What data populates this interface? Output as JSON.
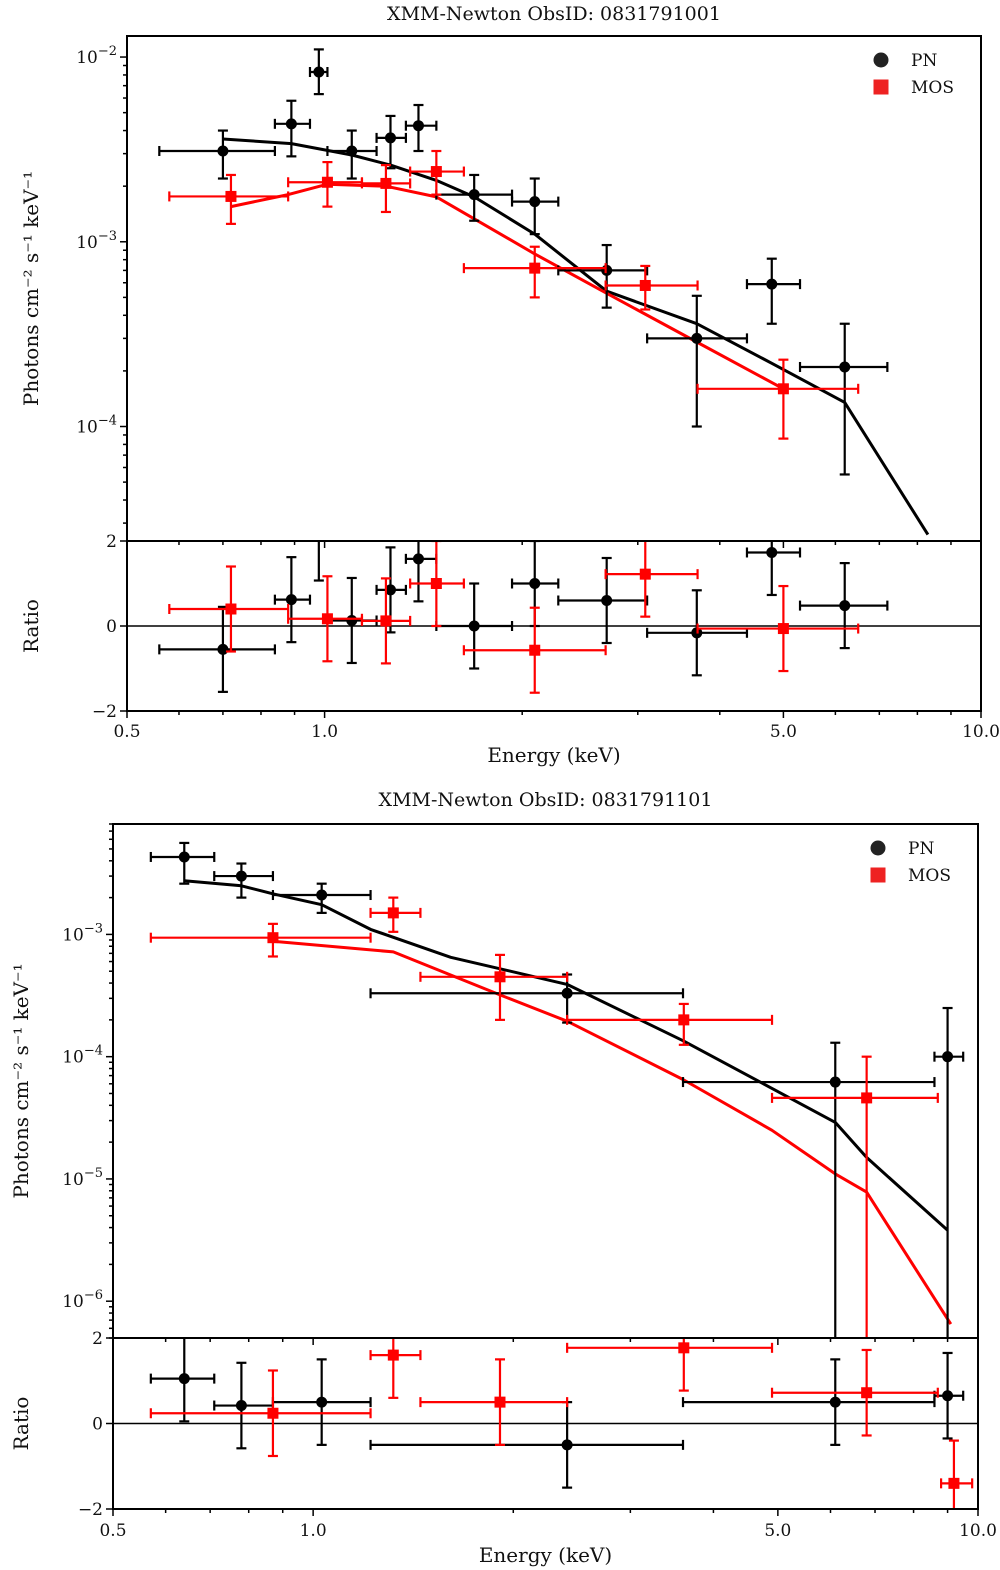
{
  "figure": {
    "legend": [
      {
        "label": "PN",
        "color": "#000000",
        "marker": "circle"
      },
      {
        "label": "MOS",
        "color": "#ff0000",
        "marker": "square"
      }
    ]
  },
  "chart_data": [
    {
      "type": "scatter",
      "title": "XMM-Newton ObsID: 0831791001",
      "xlabel": "Energy (keV)",
      "ylabel": "Photons cm⁻² s⁻¹ keV⁻¹",
      "xscale": "log",
      "yscale": "log",
      "xlim": [
        0.5,
        10.0
      ],
      "ylim": [
        2.4e-05,
        0.013
      ],
      "x_ticks": [
        "0.5",
        "1.0",
        "5.0",
        "10.0"
      ],
      "y_ticks": [
        {
          "value": 0.01,
          "label": "10^-2"
        },
        {
          "value": 0.001,
          "label": "10^-3"
        },
        {
          "value": 0.0001,
          "label": "10^-4"
        }
      ],
      "legend_position": "top-right",
      "series": [
        {
          "name": "PN",
          "color": "#000000",
          "marker": "circle",
          "points": [
            {
              "x": 0.7,
              "xlo": 0.56,
              "xhi": 0.84,
              "y": 0.0031,
              "ylo": 0.0022,
              "yhi": 0.004
            },
            {
              "x": 0.89,
              "xlo": 0.84,
              "xhi": 0.95,
              "y": 0.00435,
              "ylo": 0.0029,
              "yhi": 0.0058
            },
            {
              "x": 0.98,
              "xlo": 0.95,
              "xhi": 1.01,
              "y": 0.0083,
              "ylo": 0.0063,
              "yhi": 0.011
            },
            {
              "x": 1.1,
              "xlo": 1.01,
              "xhi": 1.2,
              "y": 0.0031,
              "ylo": 0.0022,
              "yhi": 0.004
            },
            {
              "x": 1.26,
              "xlo": 1.2,
              "xhi": 1.33,
              "y": 0.00365,
              "ylo": 0.0025,
              "yhi": 0.0048
            },
            {
              "x": 1.39,
              "xlo": 1.33,
              "xhi": 1.48,
              "y": 0.00425,
              "ylo": 0.0031,
              "yhi": 0.0055
            },
            {
              "x": 1.69,
              "xlo": 1.48,
              "xhi": 1.93,
              "y": 0.0018,
              "ylo": 0.0013,
              "yhi": 0.0023
            },
            {
              "x": 2.09,
              "xlo": 1.93,
              "xhi": 2.27,
              "y": 0.00165,
              "ylo": 0.0011,
              "yhi": 0.0022
            },
            {
              "x": 2.69,
              "xlo": 2.27,
              "xhi": 3.1,
              "y": 0.0007,
              "ylo": 0.00044,
              "yhi": 0.00096
            },
            {
              "x": 3.69,
              "xlo": 3.1,
              "xhi": 4.4,
              "y": 0.0003,
              "ylo": 0.0001,
              "yhi": 0.00051
            },
            {
              "x": 4.8,
              "xlo": 4.4,
              "xhi": 5.3,
              "y": 0.00059,
              "ylo": 0.00036,
              "yhi": 0.00081
            },
            {
              "x": 6.2,
              "xlo": 5.3,
              "xhi": 7.2,
              "y": 0.00021,
              "ylo": 5.5e-05,
              "yhi": 0.00036
            }
          ],
          "model": [
            [
              0.7,
              0.0036
            ],
            [
              0.89,
              0.0034
            ],
            [
              1.1,
              0.00295
            ],
            [
              1.26,
              0.0026
            ],
            [
              1.48,
              0.00215
            ],
            [
              1.69,
              0.00175
            ],
            [
              2.09,
              0.0011
            ],
            [
              2.69,
              0.00054
            ],
            [
              3.69,
              0.00036
            ],
            [
              4.8,
              0.00022
            ],
            [
              6.2,
              0.000135
            ],
            [
              8.3,
              2.6e-05
            ]
          ]
        },
        {
          "name": "MOS",
          "color": "#ff0000",
          "marker": "square",
          "points": [
            {
              "x": 0.72,
              "xlo": 0.58,
              "xhi": 0.88,
              "y": 0.00176,
              "ylo": 0.00125,
              "yhi": 0.0023
            },
            {
              "x": 1.01,
              "xlo": 0.88,
              "xhi": 1.14,
              "y": 0.0021,
              "ylo": 0.00155,
              "yhi": 0.0027
            },
            {
              "x": 1.24,
              "xlo": 1.14,
              "xhi": 1.35,
              "y": 0.00207,
              "ylo": 0.00145,
              "yhi": 0.0026
            },
            {
              "x": 1.48,
              "xlo": 1.35,
              "xhi": 1.63,
              "y": 0.0024,
              "ylo": 0.0018,
              "yhi": 0.0031
            },
            {
              "x": 2.09,
              "xlo": 1.63,
              "xhi": 2.68,
              "y": 0.00072,
              "ylo": 0.0005,
              "yhi": 0.00094
            },
            {
              "x": 3.08,
              "xlo": 2.68,
              "xhi": 3.7,
              "y": 0.00058,
              "ylo": 0.00043,
              "yhi": 0.00074
            },
            {
              "x": 5.0,
              "xlo": 3.7,
              "xhi": 6.5,
              "y": 0.00016,
              "ylo": 8.6e-05,
              "yhi": 0.00023
            }
          ],
          "model": [
            [
              0.72,
              0.00155
            ],
            [
              0.88,
              0.0018
            ],
            [
              1.01,
              0.00205
            ],
            [
              1.24,
              0.002
            ],
            [
              1.48,
              0.00175
            ],
            [
              2.09,
              0.00086
            ],
            [
              2.68,
              0.00053
            ],
            [
              3.7,
              0.000285
            ],
            [
              5.0,
              0.00016
            ]
          ]
        }
      ],
      "ratio_panel": {
        "ylabel": "Ratio",
        "ylim": [
          -2,
          2
        ],
        "y_ticks": [
          "2",
          "0",
          "−2"
        ],
        "reference_line": 0,
        "series": [
          {
            "name": "PN",
            "color": "#000000",
            "points": [
              {
                "x": 0.7,
                "xlo": 0.56,
                "xhi": 0.84,
                "y": -0.55,
                "ylo": -1.55,
                "yhi": 0.45
              },
              {
                "x": 0.89,
                "xlo": 0.84,
                "xhi": 0.95,
                "y": 0.62,
                "ylo": -0.38,
                "yhi": 1.62
              },
              {
                "x": 0.98,
                "xlo": 0.95,
                "xhi": 1.01,
                "y": 2.1,
                "ylo": 1.07,
                "yhi": 3.1
              },
              {
                "x": 1.1,
                "xlo": 1.01,
                "xhi": 1.2,
                "y": 0.13,
                "ylo": -0.87,
                "yhi": 1.13
              },
              {
                "x": 1.26,
                "xlo": 1.2,
                "xhi": 1.33,
                "y": 0.85,
                "ylo": -0.15,
                "yhi": 1.85
              },
              {
                "x": 1.39,
                "xlo": 1.33,
                "xhi": 1.48,
                "y": 1.58,
                "ylo": 0.58,
                "yhi": 2.58
              },
              {
                "x": 1.69,
                "xlo": 1.48,
                "xhi": 1.93,
                "y": 0.0,
                "ylo": -1.0,
                "yhi": 1.0
              },
              {
                "x": 2.09,
                "xlo": 1.93,
                "xhi": 2.27,
                "y": 1.0,
                "ylo": 0.0,
                "yhi": 2.0
              },
              {
                "x": 2.69,
                "xlo": 2.27,
                "xhi": 3.1,
                "y": 0.6,
                "ylo": -0.4,
                "yhi": 1.6
              },
              {
                "x": 3.69,
                "xlo": 3.1,
                "xhi": 4.4,
                "y": -0.16,
                "ylo": -1.16,
                "yhi": 0.84
              },
              {
                "x": 4.8,
                "xlo": 4.4,
                "xhi": 5.3,
                "y": 1.73,
                "ylo": 0.73,
                "yhi": 2.73
              },
              {
                "x": 6.2,
                "xlo": 5.3,
                "xhi": 7.2,
                "y": 0.48,
                "ylo": -0.52,
                "yhi": 1.48
              }
            ]
          },
          {
            "name": "MOS",
            "color": "#ff0000",
            "points": [
              {
                "x": 0.72,
                "xlo": 0.58,
                "xhi": 0.88,
                "y": 0.4,
                "ylo": -0.6,
                "yhi": 1.4
              },
              {
                "x": 1.01,
                "xlo": 0.88,
                "xhi": 1.14,
                "y": 0.17,
                "ylo": -0.83,
                "yhi": 1.17
              },
              {
                "x": 1.24,
                "xlo": 1.14,
                "xhi": 1.35,
                "y": 0.12,
                "ylo": -0.88,
                "yhi": 1.12
              },
              {
                "x": 1.48,
                "xlo": 1.35,
                "xhi": 1.63,
                "y": 1.0,
                "ylo": 0.0,
                "yhi": 2.0
              },
              {
                "x": 2.09,
                "xlo": 1.63,
                "xhi": 2.68,
                "y": -0.57,
                "ylo": -1.57,
                "yhi": 0.43
              },
              {
                "x": 3.08,
                "xlo": 2.68,
                "xhi": 3.7,
                "y": 1.22,
                "ylo": 0.22,
                "yhi": 2.22
              },
              {
                "x": 5.0,
                "xlo": 3.7,
                "xhi": 6.5,
                "y": -0.06,
                "ylo": -1.06,
                "yhi": 0.94
              }
            ]
          }
        ]
      }
    },
    {
      "type": "scatter",
      "title": "XMM-Newton ObsID: 0831791101",
      "xlabel": "Energy (keV)",
      "ylabel": "Photons cm⁻² s⁻¹ keV⁻¹",
      "xscale": "log",
      "yscale": "log",
      "xlim": [
        0.5,
        10.0
      ],
      "ylim": [
        5e-07,
        0.008
      ],
      "x_ticks": [
        "0.5",
        "1.0",
        "5.0",
        "10.0"
      ],
      "y_ticks": [
        {
          "value": 0.001,
          "label": "10^-3"
        },
        {
          "value": 0.0001,
          "label": "10^-4"
        },
        {
          "value": 1e-05,
          "label": "10^-5"
        },
        {
          "value": 1e-06,
          "label": "10^-6"
        }
      ],
      "legend_position": "top-right",
      "series": [
        {
          "name": "PN",
          "color": "#000000",
          "marker": "circle",
          "points": [
            {
              "x": 0.64,
              "xlo": 0.57,
              "xhi": 0.71,
              "y": 0.0043,
              "ylo": 0.0026,
              "yhi": 0.0056
            },
            {
              "x": 0.78,
              "xlo": 0.71,
              "xhi": 0.87,
              "y": 0.003,
              "ylo": 0.002,
              "yhi": 0.0038
            },
            {
              "x": 1.03,
              "xlo": 0.87,
              "xhi": 1.22,
              "y": 0.0021,
              "ylo": 0.0015,
              "yhi": 0.0026
            },
            {
              "x": 2.41,
              "xlo": 1.22,
              "xhi": 3.6,
              "y": 0.00033,
              "ylo": 0.00019,
              "yhi": 0.00047
            },
            {
              "x": 6.1,
              "xlo": 3.6,
              "xhi": 8.6,
              "y": 6.2e-05,
              "ylo": 1e-07,
              "yhi": 0.00013
            },
            {
              "x": 9.0,
              "xlo": 8.6,
              "xhi": 9.5,
              "y": 0.0001,
              "ylo": 1e-07,
              "yhi": 0.00025
            }
          ],
          "model": [
            [
              0.64,
              0.00275
            ],
            [
              0.78,
              0.0025
            ],
            [
              0.87,
              0.00215
            ],
            [
              1.03,
              0.00175
            ],
            [
              1.22,
              0.0011
            ],
            [
              1.61,
              0.00065
            ],
            [
              2.41,
              0.00039
            ],
            [
              3.6,
              0.000135
            ],
            [
              4.9,
              5.5e-05
            ],
            [
              6.1,
              2.9e-05
            ],
            [
              6.8,
              1.5e-05
            ],
            [
              9.0,
              3.8e-06
            ]
          ]
        },
        {
          "name": "MOS",
          "color": "#ff0000",
          "marker": "square",
          "points": [
            {
              "x": 0.87,
              "xlo": 0.57,
              "xhi": 1.22,
              "y": 0.00094,
              "ylo": 0.00066,
              "yhi": 0.00122
            },
            {
              "x": 1.32,
              "xlo": 1.22,
              "xhi": 1.45,
              "y": 0.0015,
              "ylo": 0.00105,
              "yhi": 0.002
            },
            {
              "x": 1.91,
              "xlo": 1.45,
              "xhi": 2.41,
              "y": 0.00045,
              "ylo": 0.0002,
              "yhi": 0.00068
            },
            {
              "x": 3.61,
              "xlo": 2.41,
              "xhi": 4.9,
              "y": 0.0002,
              "ylo": 0.000125,
              "yhi": 0.00027
            },
            {
              "x": 6.8,
              "xlo": 4.9,
              "xhi": 8.7,
              "y": 4.6e-05,
              "ylo": 1e-07,
              "yhi": 0.0001
            }
          ],
          "model": [
            [
              0.87,
              0.00088
            ],
            [
              1.32,
              0.00072
            ],
            [
              1.91,
              0.00032
            ],
            [
              2.41,
              0.000195
            ],
            [
              3.6,
              6.5e-05
            ],
            [
              4.9,
              2.5e-05
            ],
            [
              6.1,
              1.1e-05
            ],
            [
              6.8,
              7.8e-06
            ],
            [
              9.1,
              6.5e-07
            ]
          ]
        }
      ],
      "ratio_panel": {
        "ylabel": "Ratio",
        "ylim": [
          -2,
          2
        ],
        "y_ticks": [
          "2",
          "0",
          "−2"
        ],
        "reference_line": 0,
        "series": [
          {
            "name": "PN",
            "color": "#000000",
            "points": [
              {
                "x": 0.64,
                "xlo": 0.57,
                "xhi": 0.71,
                "y": 1.05,
                "ylo": 0.05,
                "yhi": 2.05
              },
              {
                "x": 0.78,
                "xlo": 0.71,
                "xhi": 0.87,
                "y": 0.42,
                "ylo": -0.58,
                "yhi": 1.42
              },
              {
                "x": 1.03,
                "xlo": 0.87,
                "xhi": 1.22,
                "y": 0.5,
                "ylo": -0.5,
                "yhi": 1.5
              },
              {
                "x": 2.41,
                "xlo": 1.22,
                "xhi": 3.6,
                "y": -0.5,
                "ylo": -1.5,
                "yhi": 0.5
              },
              {
                "x": 6.1,
                "xlo": 3.6,
                "xhi": 8.6,
                "y": 0.5,
                "ylo": -0.5,
                "yhi": 1.5
              },
              {
                "x": 9.0,
                "xlo": 8.6,
                "xhi": 9.5,
                "y": 0.65,
                "ylo": -0.35,
                "yhi": 1.65
              }
            ]
          },
          {
            "name": "MOS",
            "color": "#ff0000",
            "points": [
              {
                "x": 0.87,
                "xlo": 0.57,
                "xhi": 1.22,
                "y": 0.24,
                "ylo": -0.76,
                "yhi": 1.24
              },
              {
                "x": 1.32,
                "xlo": 1.22,
                "xhi": 1.45,
                "y": 1.6,
                "ylo": 0.6,
                "yhi": 2.6
              },
              {
                "x": 1.91,
                "xlo": 1.45,
                "xhi": 2.41,
                "y": 0.5,
                "ylo": -0.5,
                "yhi": 1.5
              },
              {
                "x": 3.61,
                "xlo": 2.41,
                "xhi": 4.9,
                "y": 1.77,
                "ylo": 0.77,
                "yhi": 2.77
              },
              {
                "x": 6.8,
                "xlo": 4.9,
                "xhi": 8.7,
                "y": 0.72,
                "ylo": -0.28,
                "yhi": 1.72
              },
              {
                "x": 9.2,
                "xlo": 8.8,
                "xhi": 9.8,
                "y": -1.4,
                "ylo": -2.4,
                "yhi": -0.4
              }
            ]
          }
        ]
      }
    }
  ]
}
